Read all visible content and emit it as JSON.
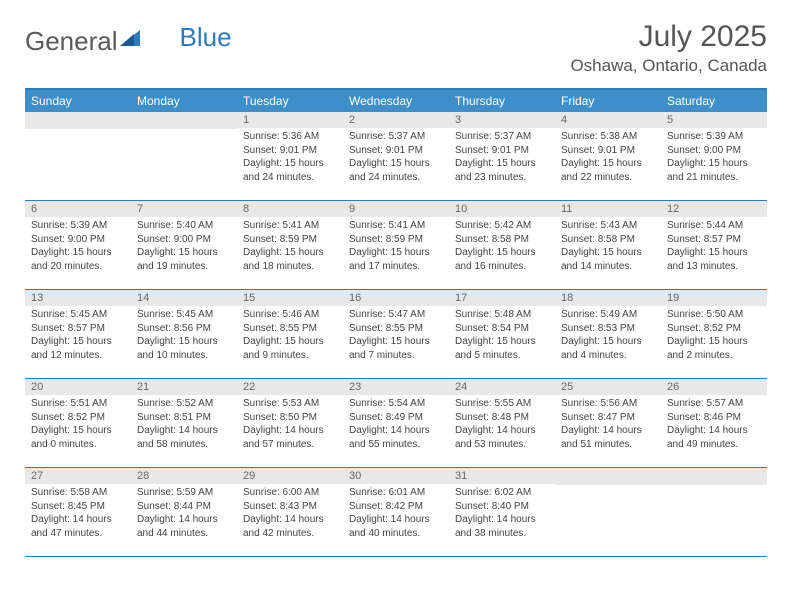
{
  "logo": {
    "text1": "General",
    "text2": "Blue"
  },
  "title": "July 2025",
  "location": "Oshawa, Ontario, Canada",
  "colors": {
    "header_bg": "#3d8fc9",
    "border": "#2f7bbf",
    "daynum_bg": "#e8e8e8",
    "text": "#444444"
  },
  "day_names": [
    "Sunday",
    "Monday",
    "Tuesday",
    "Wednesday",
    "Thursday",
    "Friday",
    "Saturday"
  ],
  "weeks": [
    [
      null,
      null,
      {
        "n": "1",
        "sr": "5:36 AM",
        "ss": "9:01 PM",
        "dl": "15 hours and 24 minutes."
      },
      {
        "n": "2",
        "sr": "5:37 AM",
        "ss": "9:01 PM",
        "dl": "15 hours and 24 minutes."
      },
      {
        "n": "3",
        "sr": "5:37 AM",
        "ss": "9:01 PM",
        "dl": "15 hours and 23 minutes."
      },
      {
        "n": "4",
        "sr": "5:38 AM",
        "ss": "9:01 PM",
        "dl": "15 hours and 22 minutes."
      },
      {
        "n": "5",
        "sr": "5:39 AM",
        "ss": "9:00 PM",
        "dl": "15 hours and 21 minutes."
      }
    ],
    [
      {
        "n": "6",
        "sr": "5:39 AM",
        "ss": "9:00 PM",
        "dl": "15 hours and 20 minutes."
      },
      {
        "n": "7",
        "sr": "5:40 AM",
        "ss": "9:00 PM",
        "dl": "15 hours and 19 minutes."
      },
      {
        "n": "8",
        "sr": "5:41 AM",
        "ss": "8:59 PM",
        "dl": "15 hours and 18 minutes."
      },
      {
        "n": "9",
        "sr": "5:41 AM",
        "ss": "8:59 PM",
        "dl": "15 hours and 17 minutes."
      },
      {
        "n": "10",
        "sr": "5:42 AM",
        "ss": "8:58 PM",
        "dl": "15 hours and 16 minutes."
      },
      {
        "n": "11",
        "sr": "5:43 AM",
        "ss": "8:58 PM",
        "dl": "15 hours and 14 minutes."
      },
      {
        "n": "12",
        "sr": "5:44 AM",
        "ss": "8:57 PM",
        "dl": "15 hours and 13 minutes."
      }
    ],
    [
      {
        "n": "13",
        "sr": "5:45 AM",
        "ss": "8:57 PM",
        "dl": "15 hours and 12 minutes."
      },
      {
        "n": "14",
        "sr": "5:45 AM",
        "ss": "8:56 PM",
        "dl": "15 hours and 10 minutes."
      },
      {
        "n": "15",
        "sr": "5:46 AM",
        "ss": "8:55 PM",
        "dl": "15 hours and 9 minutes."
      },
      {
        "n": "16",
        "sr": "5:47 AM",
        "ss": "8:55 PM",
        "dl": "15 hours and 7 minutes."
      },
      {
        "n": "17",
        "sr": "5:48 AM",
        "ss": "8:54 PM",
        "dl": "15 hours and 5 minutes."
      },
      {
        "n": "18",
        "sr": "5:49 AM",
        "ss": "8:53 PM",
        "dl": "15 hours and 4 minutes."
      },
      {
        "n": "19",
        "sr": "5:50 AM",
        "ss": "8:52 PM",
        "dl": "15 hours and 2 minutes."
      }
    ],
    [
      {
        "n": "20",
        "sr": "5:51 AM",
        "ss": "8:52 PM",
        "dl": "15 hours and 0 minutes."
      },
      {
        "n": "21",
        "sr": "5:52 AM",
        "ss": "8:51 PM",
        "dl": "14 hours and 58 minutes."
      },
      {
        "n": "22",
        "sr": "5:53 AM",
        "ss": "8:50 PM",
        "dl": "14 hours and 57 minutes."
      },
      {
        "n": "23",
        "sr": "5:54 AM",
        "ss": "8:49 PM",
        "dl": "14 hours and 55 minutes."
      },
      {
        "n": "24",
        "sr": "5:55 AM",
        "ss": "8:48 PM",
        "dl": "14 hours and 53 minutes."
      },
      {
        "n": "25",
        "sr": "5:56 AM",
        "ss": "8:47 PM",
        "dl": "14 hours and 51 minutes."
      },
      {
        "n": "26",
        "sr": "5:57 AM",
        "ss": "8:46 PM",
        "dl": "14 hours and 49 minutes."
      }
    ],
    [
      {
        "n": "27",
        "sr": "5:58 AM",
        "ss": "8:45 PM",
        "dl": "14 hours and 47 minutes."
      },
      {
        "n": "28",
        "sr": "5:59 AM",
        "ss": "8:44 PM",
        "dl": "14 hours and 44 minutes."
      },
      {
        "n": "29",
        "sr": "6:00 AM",
        "ss": "8:43 PM",
        "dl": "14 hours and 42 minutes."
      },
      {
        "n": "30",
        "sr": "6:01 AM",
        "ss": "8:42 PM",
        "dl": "14 hours and 40 minutes."
      },
      {
        "n": "31",
        "sr": "6:02 AM",
        "ss": "8:40 PM",
        "dl": "14 hours and 38 minutes."
      },
      null,
      null
    ]
  ],
  "labels": {
    "sunrise": "Sunrise:",
    "sunset": "Sunset:",
    "daylight": "Daylight:"
  }
}
